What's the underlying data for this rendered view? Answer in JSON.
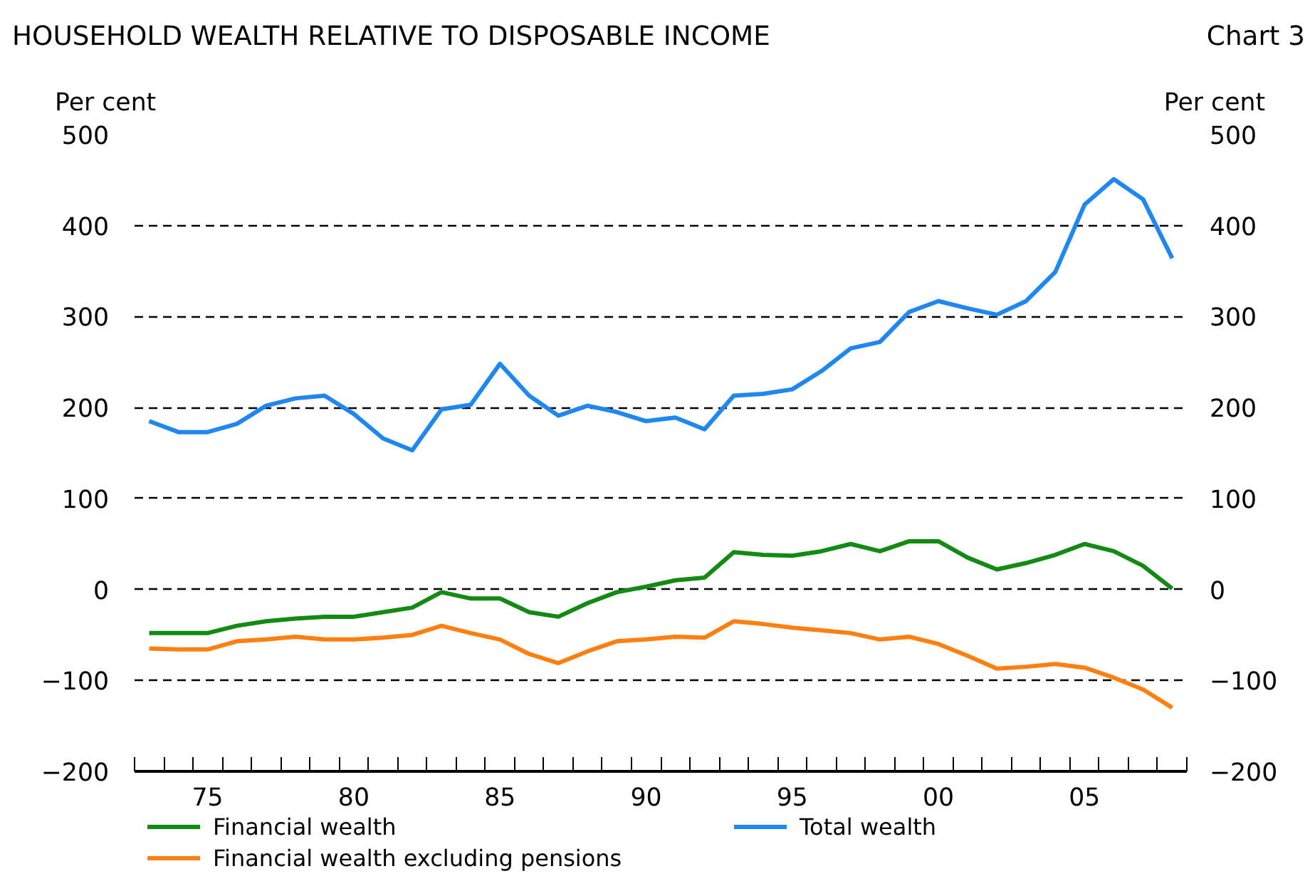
{
  "chart_data": {
    "type": "line",
    "title": "HOUSEHOLD WEALTH RELATIVE TO DISPOSABLE INCOME",
    "annotations": [
      "Chart 3"
    ],
    "ylabel": "Per cent",
    "y2label": "Per cent",
    "x": [
      1973,
      1974,
      1975,
      1976,
      1977,
      1978,
      1979,
      1980,
      1981,
      1982,
      1983,
      1984,
      1985,
      1986,
      1987,
      1988,
      1989,
      1990,
      1991,
      1992,
      1993,
      1994,
      1995,
      1996,
      1997,
      1998,
      1999,
      2000,
      2001,
      2002,
      2003,
      2004,
      2005,
      2006,
      2007,
      2008
    ],
    "series": [
      {
        "name": "Financial wealth",
        "color": "#138a13",
        "values": [
          -48,
          -48,
          -48,
          -40,
          -35,
          -32,
          -30,
          -30,
          -25,
          -20,
          -3,
          -10,
          -10,
          -25,
          -30,
          -15,
          -3,
          3,
          10,
          13,
          41,
          38,
          37,
          42,
          50,
          42,
          53,
          53,
          35,
          22,
          29,
          38,
          50,
          42,
          26,
          1
        ]
      },
      {
        "name": "Total wealth",
        "color": "#1e88f0",
        "values": [
          185,
          173,
          173,
          182,
          202,
          210,
          213,
          193,
          166,
          153,
          198,
          203,
          248,
          213,
          191,
          202,
          195,
          185,
          189,
          176,
          213,
          215,
          220,
          240,
          265,
          272,
          305,
          317,
          309,
          302,
          317,
          349,
          423,
          451,
          429,
          364
        ]
      },
      {
        "name": "Financial wealth excluding pensions",
        "color": "#ff8010",
        "values": [
          -65,
          -66,
          -66,
          -57,
          -55,
          -52,
          -55,
          -55,
          -53,
          -50,
          -40,
          -48,
          -55,
          -71,
          -81,
          -68,
          -57,
          -55,
          -52,
          -53,
          -35,
          -38,
          -42,
          -45,
          -48,
          -55,
          -52,
          -60,
          -73,
          -87,
          -85,
          -82,
          -86,
          -97,
          -110,
          -130
        ]
      }
    ],
    "xlim": [
      1972.5,
      2008.5
    ],
    "xticks": [
      {
        "value": 1972.5,
        "label": null
      },
      {
        "value": 1973.5,
        "label": null
      },
      {
        "value": 1974.5,
        "label": null
      },
      {
        "value": 1975,
        "label": "75"
      },
      {
        "value": 1975.5,
        "label": null
      },
      {
        "value": 1976.5,
        "label": null
      },
      {
        "value": 1977.5,
        "label": null
      },
      {
        "value": 1978.5,
        "label": null
      },
      {
        "value": 1979.5,
        "label": null
      },
      {
        "value": 1980,
        "label": "80"
      },
      {
        "value": 1980.5,
        "label": null
      },
      {
        "value": 1981.5,
        "label": null
      },
      {
        "value": 1982.5,
        "label": null
      },
      {
        "value": 1983.5,
        "label": null
      },
      {
        "value": 1984.5,
        "label": null
      },
      {
        "value": 1985,
        "label": "85"
      },
      {
        "value": 1985.5,
        "label": null
      },
      {
        "value": 1986.5,
        "label": null
      },
      {
        "value": 1987.5,
        "label": null
      },
      {
        "value": 1988.5,
        "label": null
      },
      {
        "value": 1989.5,
        "label": null
      },
      {
        "value": 1990,
        "label": "90"
      },
      {
        "value": 1990.5,
        "label": null
      },
      {
        "value": 1991.5,
        "label": null
      },
      {
        "value": 1992.5,
        "label": null
      },
      {
        "value": 1993.5,
        "label": null
      },
      {
        "value": 1994.5,
        "label": null
      },
      {
        "value": 1995,
        "label": "95"
      },
      {
        "value": 1995.5,
        "label": null
      },
      {
        "value": 1996.5,
        "label": null
      },
      {
        "value": 1997.5,
        "label": null
      },
      {
        "value": 1998.5,
        "label": null
      },
      {
        "value": 1999.5,
        "label": null
      },
      {
        "value": 2000,
        "label": "00"
      },
      {
        "value": 2000.5,
        "label": null
      },
      {
        "value": 2001.5,
        "label": null
      },
      {
        "value": 2002.5,
        "label": null
      },
      {
        "value": 2003.5,
        "label": null
      },
      {
        "value": 2004.5,
        "label": null
      },
      {
        "value": 2005,
        "label": "05"
      },
      {
        "value": 2005.5,
        "label": null
      },
      {
        "value": 2006.5,
        "label": null
      },
      {
        "value": 2007.5,
        "label": null
      },
      {
        "value": 2008.5,
        "label": null
      }
    ],
    "ylim": [
      -200,
      500
    ],
    "yticks": [
      -200,
      -100,
      0,
      100,
      200,
      300,
      400,
      500
    ],
    "y2lim": [
      -200,
      500
    ],
    "y2ticks": [
      -200,
      -100,
      0,
      100,
      200,
      300,
      400,
      500
    ],
    "grid": "y",
    "legend": "bottom",
    "line_style": "solid",
    "marker": "none"
  }
}
